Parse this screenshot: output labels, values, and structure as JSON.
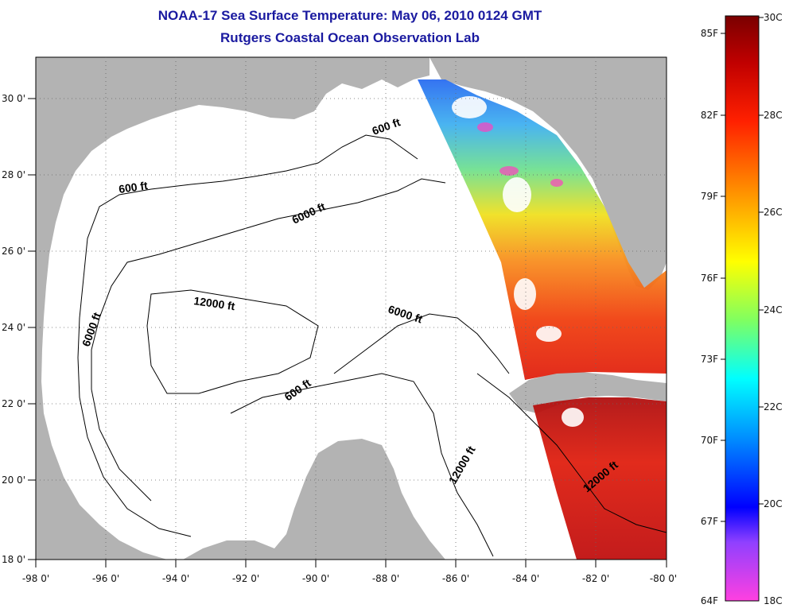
{
  "map": {
    "title": "NOAA-17 Sea Surface Temperature:  May 06, 2010 0124 GMT",
    "subtitle": "Rutgers Coastal Ocean Observation Lab",
    "lon_ticks": [
      "-98 0'",
      "-96 0'",
      "-94 0'",
      "-92 0'",
      "-90 0'",
      "-88 0'",
      "-86 0'",
      "-84 0'",
      "-82 0'",
      "-80 0'"
    ],
    "lat_ticks": [
      "30 0'",
      "28 0'",
      "26 0'",
      "24 0'",
      "22 0'",
      "20 0'",
      "18 0'"
    ],
    "contour_labels": [
      "600 ft",
      "600 ft",
      "6000 ft",
      "12000 ft",
      "6000 ft",
      "6000 ft",
      "600 ft",
      "12000 ft",
      "12000 ft"
    ],
    "colors": {
      "land": "#b3b3b3",
      "ocean": "#ffffff",
      "title": "#1a1aa0"
    }
  },
  "colorbar": {
    "fahrenheit": [
      "85F",
      "82F",
      "79F",
      "76F",
      "73F",
      "70F",
      "67F",
      "64F"
    ],
    "celsius": [
      "30C",
      "28C",
      "26C",
      "24C",
      "22C",
      "20C",
      "18C"
    ]
  }
}
